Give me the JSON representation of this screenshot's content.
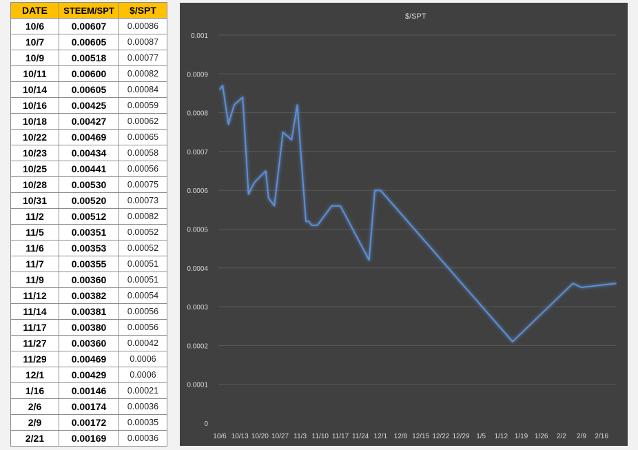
{
  "table": {
    "headers": [
      "DATE",
      "STEEM/SPT",
      "$/SPT"
    ],
    "rows": [
      [
        "10/6",
        "0.00607",
        "0.00086"
      ],
      [
        "10/7",
        "0.00605",
        "0.00087"
      ],
      [
        "10/9",
        "0.00518",
        "0.00077"
      ],
      [
        "10/11",
        "0.00600",
        "0.00082"
      ],
      [
        "10/14",
        "0.00605",
        "0.00084"
      ],
      [
        "10/16",
        "0.00425",
        "0.00059"
      ],
      [
        "10/18",
        "0.00427",
        "0.00062"
      ],
      [
        "10/22",
        "0.00469",
        "0.00065"
      ],
      [
        "10/23",
        "0.00434",
        "0.00058"
      ],
      [
        "10/25",
        "0.00441",
        "0.00056"
      ],
      [
        "10/28",
        "0.00530",
        "0.00075"
      ],
      [
        "10/31",
        "0.00520",
        "0.00073"
      ],
      [
        "11/2",
        "0.00512",
        "0.00082"
      ],
      [
        "11/5",
        "0.00351",
        "0.00052"
      ],
      [
        "11/6",
        "0.00353",
        "0.00052"
      ],
      [
        "11/7",
        "0.00355",
        "0.00051"
      ],
      [
        "11/9",
        "0.00360",
        "0.00051"
      ],
      [
        "11/12",
        "0.00382",
        "0.00054"
      ],
      [
        "11/14",
        "0.00381",
        "0.00056"
      ],
      [
        "11/17",
        "0.00380",
        "0.00056"
      ],
      [
        "11/27",
        "0.00360",
        "0.00042"
      ],
      [
        "11/29",
        "0.00469",
        "0.0006"
      ],
      [
        "12/1",
        "0.00429",
        "0.0006"
      ],
      [
        "1/16",
        "0.00146",
        "0.00021"
      ],
      [
        "2/6",
        "0.00174",
        "0.00036"
      ],
      [
        "2/9",
        "0.00172",
        "0.00035"
      ],
      [
        "2/21",
        "0.00169",
        "0.00036"
      ]
    ]
  },
  "chart_data": {
    "type": "line",
    "title": "",
    "xlabel": "",
    "ylabel": "",
    "x_axis_type": "date",
    "ylim": [
      0,
      0.001
    ],
    "yticks": [
      "0",
      "0.0001",
      "0.0002",
      "0.0003",
      "0.0004",
      "0.0005",
      "0.0006",
      "0.0007",
      "0.0008",
      "0.0009",
      "0.001"
    ],
    "xticks": [
      "10/6",
      "10/13",
      "10/20",
      "10/27",
      "11/3",
      "11/10",
      "11/17",
      "11/24",
      "12/1",
      "12/8",
      "12/15",
      "12/22",
      "12/29",
      "1/5",
      "1/12",
      "1/19",
      "1/26",
      "2/2",
      "2/9",
      "2/16"
    ],
    "legend_position": "top-center",
    "grid": true,
    "series": [
      {
        "name": "$/SPT",
        "color": "#5b8fd6",
        "x": [
          "10/6",
          "10/7",
          "10/9",
          "10/11",
          "10/14",
          "10/16",
          "10/18",
          "10/22",
          "10/23",
          "10/25",
          "10/28",
          "10/31",
          "11/2",
          "11/5",
          "11/6",
          "11/7",
          "11/9",
          "11/12",
          "11/14",
          "11/17",
          "11/27",
          "11/29",
          "12/1",
          "1/16",
          "2/6",
          "2/9",
          "2/21"
        ],
        "values": [
          0.00086,
          0.00087,
          0.00077,
          0.00082,
          0.00084,
          0.00059,
          0.00062,
          0.00065,
          0.00058,
          0.00056,
          0.00075,
          0.00073,
          0.00082,
          0.00052,
          0.00052,
          0.00051,
          0.00051,
          0.00054,
          0.00056,
          0.00056,
          0.00042,
          0.0006,
          0.0006,
          0.00021,
          0.00036,
          0.00035,
          0.00036
        ]
      }
    ]
  }
}
